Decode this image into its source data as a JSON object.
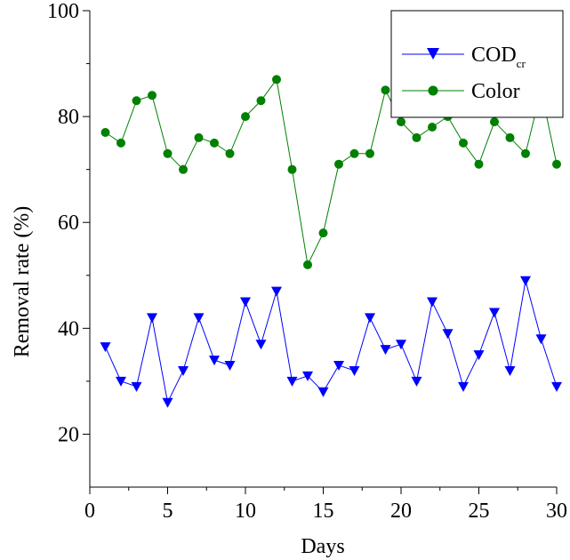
{
  "chart_data": {
    "type": "line",
    "xlabel": "Days",
    "ylabel": "Removal rate (%)",
    "xlim": [
      0,
      30
    ],
    "ylim": [
      10,
      100
    ],
    "x_ticks": [
      0,
      5,
      10,
      15,
      20,
      25,
      30
    ],
    "y_ticks": [
      20,
      40,
      60,
      80,
      100
    ],
    "grid": false,
    "legend_position": "top-right",
    "x": [
      1,
      2,
      3,
      4,
      5,
      6,
      7,
      8,
      9,
      10,
      11,
      12,
      13,
      14,
      15,
      16,
      17,
      18,
      19,
      20,
      21,
      22,
      23,
      24,
      25,
      26,
      27,
      28,
      29,
      30
    ],
    "series": [
      {
        "name": "COD",
        "name_subscript": "cr",
        "marker": "triangle-down",
        "color": "#0000ff",
        "values": [
          36.5,
          30,
          29,
          42,
          26,
          32,
          42,
          34,
          33,
          45,
          37,
          47,
          30,
          31,
          28,
          33,
          32,
          42,
          36,
          37,
          30,
          45,
          39,
          29,
          35,
          43,
          32,
          49,
          38,
          29
        ]
      },
      {
        "name": "Color",
        "marker": "circle",
        "color": "#008000",
        "values": [
          77,
          75,
          83,
          84,
          73,
          70,
          76,
          75,
          73,
          80,
          83,
          87,
          70,
          52,
          58,
          71,
          73,
          73,
          85,
          79,
          76,
          78,
          80,
          75,
          71,
          79,
          76,
          73,
          85,
          71
        ]
      }
    ]
  }
}
